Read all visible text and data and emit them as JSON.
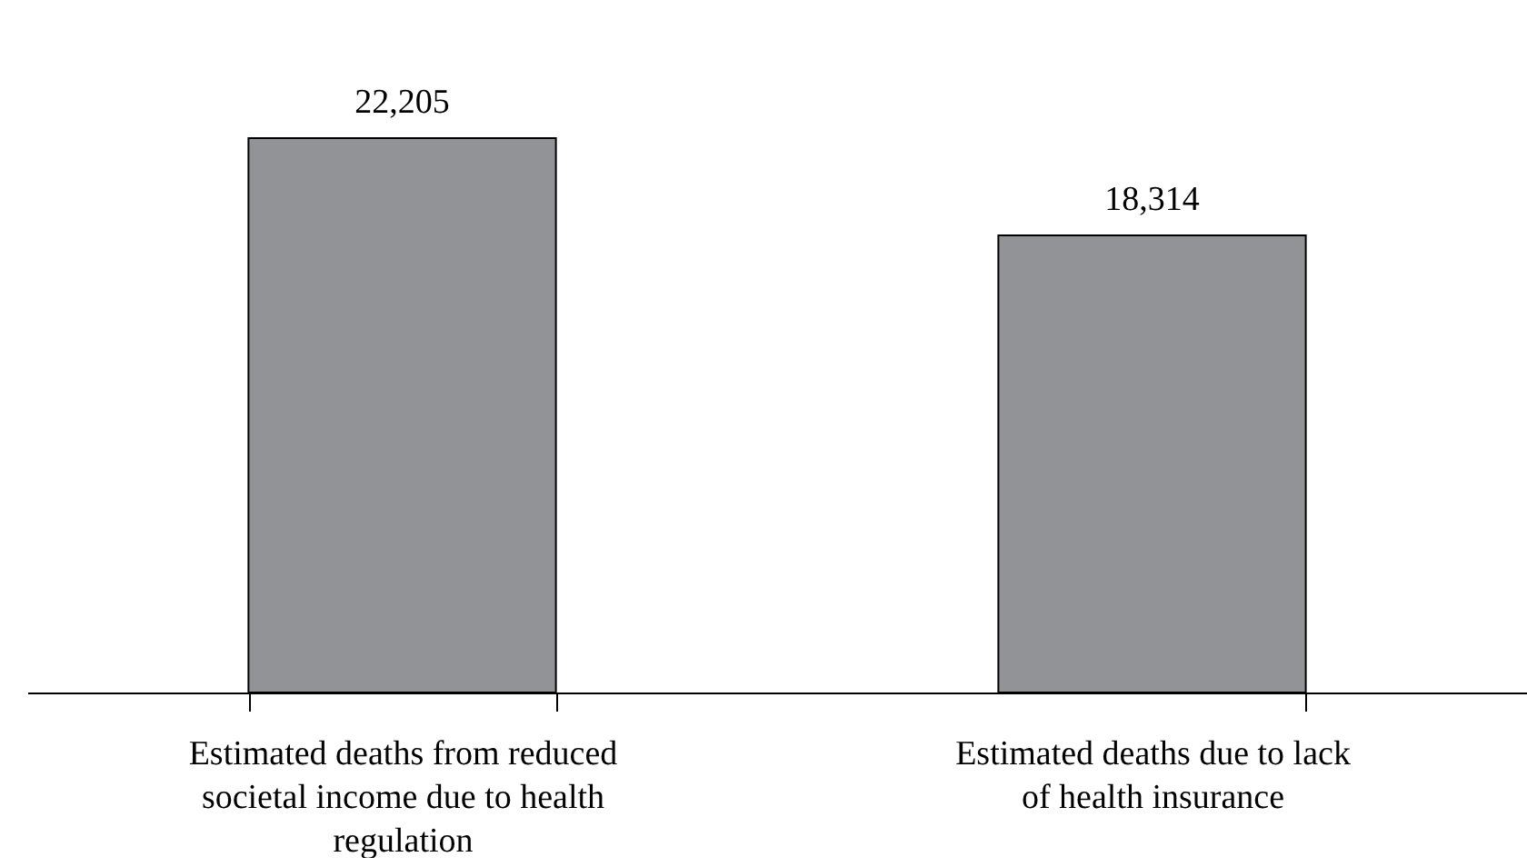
{
  "chart_data": {
    "type": "bar",
    "categories": [
      "Estimated deaths from reduced societal income due to health regulation",
      "Estimated deaths due to lack of health insurance"
    ],
    "values": [
      22205,
      18314
    ],
    "value_labels": [
      "22,205",
      "18,314"
    ],
    "color": "#929397"
  }
}
